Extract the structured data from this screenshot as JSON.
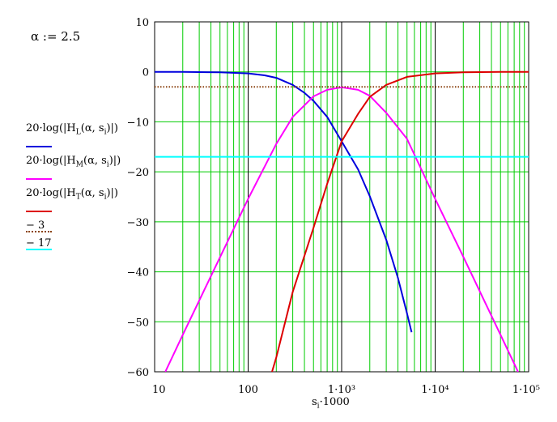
{
  "definition": {
    "text": "α := 2.5"
  },
  "colors": {
    "grid_minor": "#00cc00",
    "grid_major": "#000000",
    "HL": "#0000dd",
    "HM": "#ff00ff",
    "HT": "#dd0000",
    "minus3": "#8b4513",
    "minus17": "#00ffff"
  },
  "legend": [
    {
      "label": "20·log(|H_L(α, s_i)|)",
      "main": "20·log(|H",
      "sub": "L",
      "tail": "(α, s",
      "sub2": "i",
      "end": ")|)",
      "color": "#0000dd",
      "style": "solid"
    },
    {
      "label": "20·log(|H_M(α, s_i)|)",
      "main": "20·log(|H",
      "sub": "M",
      "tail": "(α, s",
      "sub2": "i",
      "end": ")|)",
      "color": "#ff00ff",
      "style": "solid"
    },
    {
      "label": "20·log(|H_T(α, s_i)|)",
      "main": "20·log(|H",
      "sub": "T",
      "tail": "(α, s",
      "sub2": "i",
      "end": ")|)",
      "color": "#dd0000",
      "style": "solid"
    },
    {
      "label": "− 3",
      "color": "#8b4513",
      "style": "dotted"
    },
    {
      "label": "− 17",
      "color": "#00ffff",
      "style": "solid"
    }
  ],
  "xlabel": {
    "main": "s",
    "sub": "i",
    "tail": "·1000"
  },
  "chart_data": {
    "type": "line",
    "xscale": "log",
    "xlim": [
      10,
      100000
    ],
    "ylim": [
      -60,
      10
    ],
    "yticks": [
      10,
      0,
      -10,
      -20,
      -30,
      -40,
      -50,
      -60
    ],
    "ytick_labels": [
      "10",
      "0",
      "−10",
      "−20",
      "−30",
      "−40",
      "−50",
      "−60"
    ],
    "xticks": [
      10,
      100,
      1000,
      10000,
      100000
    ],
    "xtick_labels": [
      "10",
      "100",
      "1·10³",
      "1·10⁴",
      "1·10⁵"
    ],
    "grid": true,
    "alpha": 2.5,
    "series": [
      {
        "name": "20·log(|H_L(α, s_i)|)",
        "color": "#0000dd",
        "x": [
          10,
          20,
          50,
          100,
          150,
          200,
          300,
          400,
          500,
          700,
          1000,
          1500,
          2000,
          3000,
          4000,
          5000,
          5600
        ],
        "y": [
          0,
          0,
          -0.1,
          -0.3,
          -0.7,
          -1.2,
          -2.6,
          -4.2,
          -5.8,
          -9.0,
          -13.9,
          -19.5,
          -24.9,
          -33.6,
          -41.2,
          -48.3,
          -52.1
        ]
      },
      {
        "name": "20·log(|H_M(α, s_i)|)",
        "color": "#ff00ff",
        "x": [
          13,
          20,
          50,
          100,
          200,
          300,
          500,
          700,
          1000,
          1500,
          2000,
          3000,
          5000,
          10000,
          20000,
          50000,
          77000
        ],
        "y": [
          -60,
          -52.6,
          -37.1,
          -25.4,
          -14.4,
          -9.0,
          -4.9,
          -3.6,
          -3.1,
          -3.6,
          -4.8,
          -8.2,
          -13.4,
          -25.4,
          -37.0,
          -52.6,
          -60
        ]
      },
      {
        "name": "20·log(|H_T(α, s_i)|)",
        "color": "#dd0000",
        "x": [
          180,
          200,
          300,
          500,
          700,
          1000,
          1500,
          2000,
          3000,
          5000,
          10000,
          20000,
          50000,
          100000
        ],
        "y": [
          -60,
          -57.1,
          -44.0,
          -31.2,
          -22.4,
          -13.9,
          -8.4,
          -5.0,
          -2.6,
          -1.0,
          -0.3,
          -0.1,
          0,
          0
        ]
      },
      {
        "name": "− 3",
        "color": "#8b4513",
        "dotted": true,
        "x": [
          10,
          100000
        ],
        "y": [
          -3,
          -3
        ]
      },
      {
        "name": "− 17",
        "color": "#00ffff",
        "x": [
          10,
          100000
        ],
        "y": [
          -17,
          -17
        ]
      }
    ]
  }
}
